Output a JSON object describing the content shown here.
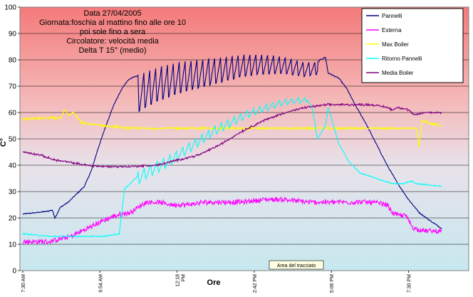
{
  "chart_data": {
    "type": "line",
    "title_lines": [
      "Data 27/04/2005",
      "Giornata:foschia al mattino fino alle ore 10",
      "poi sole fino a sera",
      "Circolatore: velocità media",
      "Delta T 15° (medio)"
    ],
    "xlabel": "Ore",
    "ylabel": "C°",
    "x_ticks": [
      {
        "t": 450,
        "label": [
          "7:30 AM"
        ]
      },
      {
        "t": 594,
        "label": [
          "9:54 AM"
        ]
      },
      {
        "t": 738,
        "label": [
          "12:18",
          "PM"
        ]
      },
      {
        "t": 882,
        "label": [
          "2:42 PM"
        ]
      },
      {
        "t": 1026,
        "label": [
          "5:06 PM"
        ]
      },
      {
        "t": 1170,
        "label": [
          "7:30 PM"
        ]
      }
    ],
    "xlim": [
      450,
      1240
    ],
    "ylim": [
      0,
      100
    ],
    "y_ticks": [
      0,
      10,
      20,
      30,
      40,
      50,
      60,
      70,
      80,
      90,
      100
    ],
    "grid": true,
    "legend_position": "top-right",
    "plot_area_label": "Area del tracciato",
    "series": [
      {
        "name": "Pannelli",
        "color": "#000080",
        "oscillate": {
          "t_start": 665,
          "t_end": 1000,
          "period": 11,
          "amp": 15,
          "amp_end": 5
        },
        "points": [
          [
            450,
            21.5
          ],
          [
            475,
            22
          ],
          [
            495,
            22.5
          ],
          [
            505,
            23
          ],
          [
            510,
            20
          ],
          [
            520,
            24
          ],
          [
            535,
            26
          ],
          [
            550,
            29
          ],
          [
            565,
            32
          ],
          [
            578,
            38
          ],
          [
            590,
            46
          ],
          [
            605,
            55
          ],
          [
            620,
            63
          ],
          [
            635,
            69
          ],
          [
            645,
            72
          ],
          [
            652,
            73
          ],
          [
            665,
            74
          ],
          [
            700,
            77
          ],
          [
            740,
            79
          ],
          [
            780,
            80
          ],
          [
            820,
            81
          ],
          [
            860,
            82
          ],
          [
            900,
            82
          ],
          [
            940,
            81
          ],
          [
            975,
            79
          ],
          [
            1000,
            79
          ],
          [
            1005,
            80
          ],
          [
            1015,
            81
          ],
          [
            1020,
            75
          ],
          [
            1030,
            74
          ],
          [
            1040,
            73
          ],
          [
            1055,
            69
          ],
          [
            1070,
            63
          ],
          [
            1090,
            56
          ],
          [
            1110,
            48
          ],
          [
            1130,
            40
          ],
          [
            1150,
            33
          ],
          [
            1170,
            27
          ],
          [
            1190,
            22
          ],
          [
            1210,
            19
          ],
          [
            1232,
            16
          ]
        ]
      },
      {
        "name": "Esterna",
        "color": "#ff00ff",
        "jitter": 0.9,
        "points": [
          [
            450,
            11
          ],
          [
            500,
            11
          ],
          [
            520,
            12
          ],
          [
            540,
            13
          ],
          [
            560,
            15
          ],
          [
            580,
            17
          ],
          [
            600,
            19
          ],
          [
            625,
            21
          ],
          [
            650,
            22
          ],
          [
            665,
            24
          ],
          [
            680,
            26
          ],
          [
            700,
            26
          ],
          [
            730,
            25
          ],
          [
            760,
            25
          ],
          [
            790,
            26
          ],
          [
            820,
            26
          ],
          [
            860,
            26
          ],
          [
            900,
            27
          ],
          [
            940,
            27
          ],
          [
            980,
            26
          ],
          [
            1020,
            26
          ],
          [
            1060,
            26
          ],
          [
            1100,
            26
          ],
          [
            1130,
            25
          ],
          [
            1140,
            22
          ],
          [
            1150,
            21
          ],
          [
            1165,
            21
          ],
          [
            1170,
            19
          ],
          [
            1180,
            16
          ],
          [
            1205,
            15
          ],
          [
            1232,
            15
          ]
        ]
      },
      {
        "name": "Max Boiler",
        "color": "#ffff00",
        "jitter": 0.4,
        "points": [
          [
            450,
            57.5
          ],
          [
            520,
            58
          ],
          [
            528,
            61
          ],
          [
            535,
            59
          ],
          [
            545,
            60
          ],
          [
            560,
            56
          ],
          [
            600,
            55
          ],
          [
            650,
            54
          ],
          [
            700,
            54
          ],
          [
            750,
            54
          ],
          [
            800,
            54
          ],
          [
            850,
            54
          ],
          [
            900,
            54
          ],
          [
            950,
            54
          ],
          [
            1000,
            54
          ],
          [
            1050,
            54
          ],
          [
            1100,
            54
          ],
          [
            1150,
            54
          ],
          [
            1185,
            54
          ],
          [
            1190,
            47
          ],
          [
            1195,
            57
          ],
          [
            1210,
            56
          ],
          [
            1232,
            55
          ]
        ]
      },
      {
        "name": "Ritorno Pannelli",
        "color": "#00ffff",
        "oscillate": {
          "t_start": 665,
          "t_end": 980,
          "period": 12,
          "amp": 5,
          "amp_end": 2
        },
        "points": [
          [
            450,
            14
          ],
          [
            500,
            13
          ],
          [
            550,
            13
          ],
          [
            600,
            13
          ],
          [
            630,
            14
          ],
          [
            640,
            31
          ],
          [
            650,
            33
          ],
          [
            665,
            36
          ],
          [
            690,
            39
          ],
          [
            720,
            42
          ],
          [
            750,
            46
          ],
          [
            780,
            50
          ],
          [
            810,
            54
          ],
          [
            840,
            57
          ],
          [
            870,
            60
          ],
          [
            900,
            62
          ],
          [
            930,
            64
          ],
          [
            960,
            65
          ],
          [
            980,
            65
          ],
          [
            990,
            62
          ],
          [
            1000,
            50
          ],
          [
            1015,
            55
          ],
          [
            1020,
            62
          ],
          [
            1030,
            55
          ],
          [
            1040,
            48
          ],
          [
            1060,
            41
          ],
          [
            1080,
            37
          ],
          [
            1110,
            35
          ],
          [
            1140,
            33
          ],
          [
            1160,
            33
          ],
          [
            1175,
            34
          ],
          [
            1185,
            33
          ],
          [
            1232,
            32
          ]
        ]
      },
      {
        "name": "Media Boiler",
        "color": "#800080",
        "jitter": 0.3,
        "points": [
          [
            450,
            45
          ],
          [
            480,
            44
          ],
          [
            510,
            42
          ],
          [
            540,
            41
          ],
          [
            570,
            40
          ],
          [
            600,
            39.5
          ],
          [
            650,
            39.5
          ],
          [
            700,
            40
          ],
          [
            740,
            42
          ],
          [
            780,
            44
          ],
          [
            820,
            48
          ],
          [
            860,
            53
          ],
          [
            900,
            57
          ],
          [
            940,
            60
          ],
          [
            980,
            62
          ],
          [
            1020,
            63
          ],
          [
            1060,
            63
          ],
          [
            1100,
            63
          ],
          [
            1130,
            62
          ],
          [
            1140,
            61
          ],
          [
            1150,
            62
          ],
          [
            1170,
            61
          ],
          [
            1180,
            59
          ],
          [
            1200,
            60
          ],
          [
            1232,
            60
          ]
        ]
      }
    ]
  }
}
